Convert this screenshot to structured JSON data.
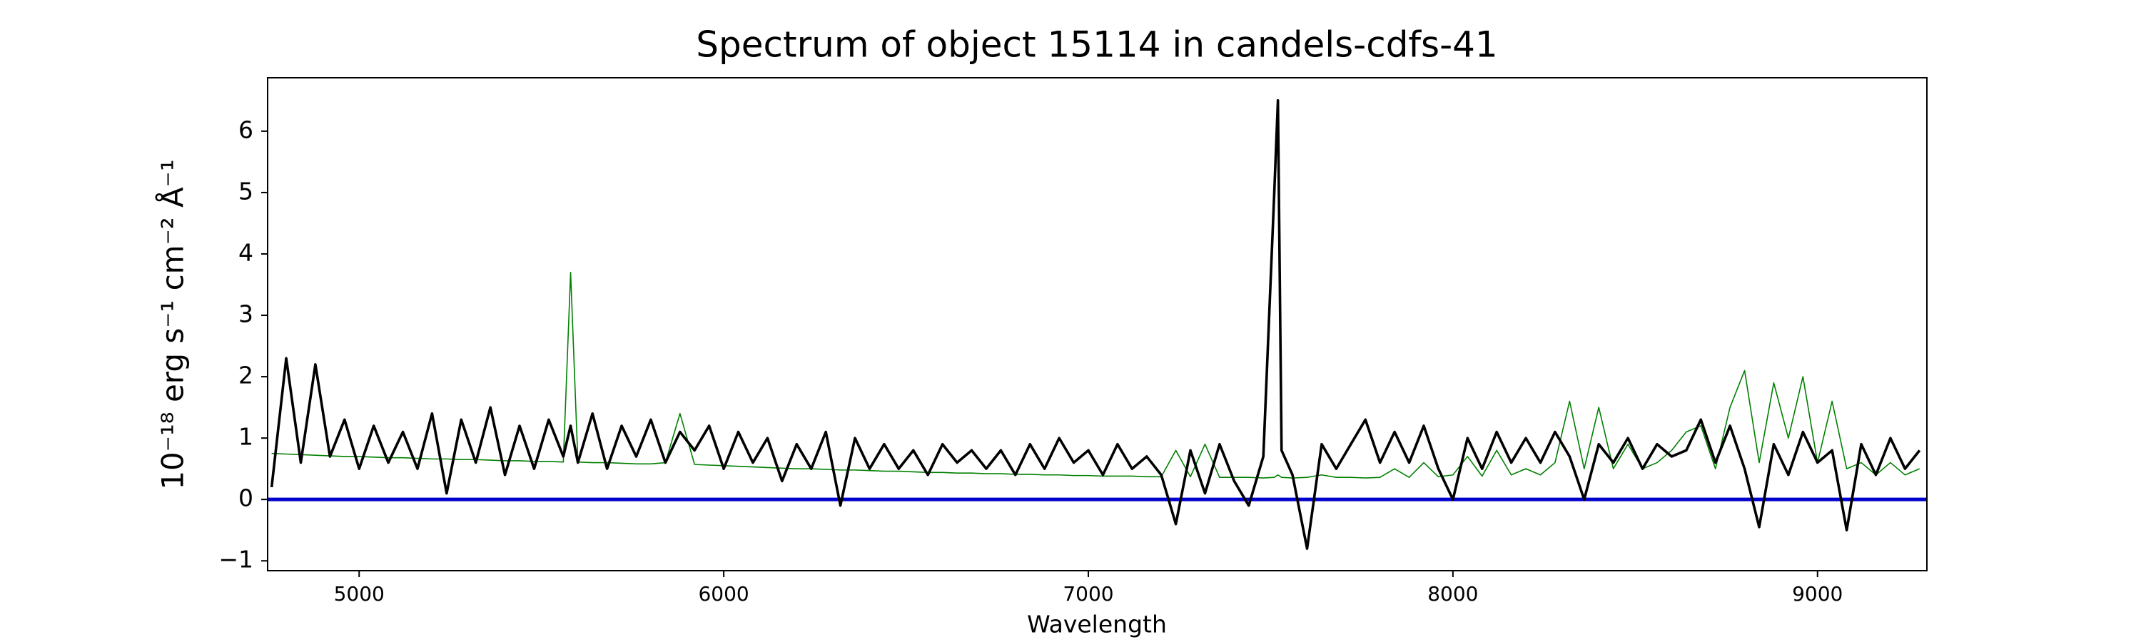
{
  "chart_data": {
    "type": "line",
    "title": "Spectrum of object 15114 in candels-cdfs-41",
    "x_label": "Wavelength",
    "y_label": "10⁻¹⁸ erg s⁻¹ cm⁻² Å⁻¹",
    "x": [
      4760,
      4800,
      4840,
      4880,
      4920,
      4960,
      5000,
      5040,
      5080,
      5120,
      5160,
      5200,
      5240,
      5280,
      5320,
      5360,
      5400,
      5440,
      5480,
      5520,
      5560,
      5580,
      5600,
      5640,
      5680,
      5720,
      5760,
      5800,
      5840,
      5880,
      5920,
      5960,
      6000,
      6040,
      6080,
      6120,
      6160,
      6200,
      6240,
      6280,
      6320,
      6360,
      6400,
      6440,
      6480,
      6520,
      6560,
      6600,
      6640,
      6680,
      6720,
      6760,
      6800,
      6840,
      6880,
      6920,
      6960,
      7000,
      7040,
      7080,
      7120,
      7160,
      7200,
      7240,
      7280,
      7320,
      7360,
      7400,
      7440,
      7480,
      7510,
      7520,
      7530,
      7560,
      7600,
      7640,
      7680,
      7720,
      7760,
      7800,
      7840,
      7880,
      7920,
      7960,
      8000,
      8040,
      8080,
      8120,
      8160,
      8200,
      8240,
      8280,
      8320,
      8360,
      8400,
      8440,
      8480,
      8520,
      8560,
      8600,
      8640,
      8680,
      8720,
      8760,
      8800,
      8840,
      8880,
      8920,
      8960,
      9000,
      9040,
      9080,
      9120,
      9160,
      9200,
      9240,
      9280
    ],
    "series": [
      {
        "color": "#008000",
        "width": 1.6,
        "values": [
          0.75,
          0.74,
          0.73,
          0.72,
          0.71,
          0.7,
          0.7,
          0.69,
          0.68,
          0.68,
          0.67,
          0.66,
          0.66,
          0.65,
          0.65,
          0.64,
          0.63,
          0.63,
          0.62,
          0.62,
          0.61,
          3.7,
          0.61,
          0.6,
          0.6,
          0.59,
          0.58,
          0.58,
          0.6,
          1.4,
          0.57,
          0.56,
          0.55,
          0.54,
          0.53,
          0.52,
          0.51,
          0.5,
          0.5,
          0.49,
          0.48,
          0.48,
          0.47,
          0.46,
          0.46,
          0.45,
          0.44,
          0.44,
          0.43,
          0.43,
          0.42,
          0.42,
          0.41,
          0.41,
          0.4,
          0.4,
          0.39,
          0.39,
          0.38,
          0.38,
          0.38,
          0.37,
          0.37,
          0.8,
          0.37,
          0.9,
          0.36,
          0.36,
          0.36,
          0.35,
          0.36,
          0.4,
          0.36,
          0.35,
          0.36,
          0.4,
          0.36,
          0.36,
          0.35,
          0.36,
          0.5,
          0.36,
          0.6,
          0.37,
          0.4,
          0.7,
          0.38,
          0.8,
          0.4,
          0.5,
          0.4,
          0.6,
          1.6,
          0.5,
          1.5,
          0.5,
          0.9,
          0.5,
          0.6,
          0.8,
          1.1,
          1.2,
          0.5,
          1.5,
          2.1,
          0.6,
          1.9,
          1.0,
          2.0,
          0.6,
          1.6,
          0.5,
          0.6,
          0.4,
          0.6,
          0.4,
          0.5
        ]
      },
      {
        "color": "#000000",
        "width": 3.6,
        "values": [
          0.2,
          2.3,
          0.6,
          2.2,
          0.7,
          1.3,
          0.5,
          1.2,
          0.6,
          1.1,
          0.5,
          1.4,
          0.1,
          1.3,
          0.6,
          1.5,
          0.4,
          1.2,
          0.5,
          1.3,
          0.7,
          1.2,
          0.6,
          1.4,
          0.5,
          1.2,
          0.7,
          1.3,
          0.6,
          1.1,
          0.8,
          1.2,
          0.5,
          1.1,
          0.6,
          1.0,
          0.3,
          0.9,
          0.5,
          1.1,
          -0.1,
          1.0,
          0.5,
          0.9,
          0.5,
          0.8,
          0.4,
          0.9,
          0.6,
          0.8,
          0.5,
          0.8,
          0.4,
          0.9,
          0.5,
          1.0,
          0.6,
          0.8,
          0.4,
          0.9,
          0.5,
          0.7,
          0.4,
          -0.4,
          0.8,
          0.1,
          0.9,
          0.3,
          -0.1,
          0.7,
          5.0,
          6.5,
          0.8,
          0.4,
          -0.8,
          0.9,
          0.5,
          0.9,
          1.3,
          0.6,
          1.1,
          0.6,
          1.2,
          0.5,
          0.0,
          1.0,
          0.5,
          1.1,
          0.6,
          1.0,
          0.6,
          1.1,
          0.7,
          0.0,
          0.9,
          0.6,
          1.0,
          0.5,
          0.9,
          0.7,
          0.8,
          1.3,
          0.6,
          1.2,
          0.5,
          -0.45,
          0.9,
          0.4,
          1.1,
          0.6,
          0.8,
          -0.5,
          0.9,
          0.4,
          1.0,
          0.5,
          0.8
        ]
      }
    ],
    "hline": {
      "y": 0,
      "color": "#0000cc"
    },
    "xlim": [
      4749,
      9300
    ],
    "ylim": [
      -1.16,
      6.87
    ],
    "xticks": [
      5000,
      6000,
      7000,
      8000,
      9000
    ],
    "yticks": [
      {
        "value": -1,
        "label": "−1"
      },
      0,
      1,
      2,
      3,
      4,
      5,
      6
    ]
  }
}
